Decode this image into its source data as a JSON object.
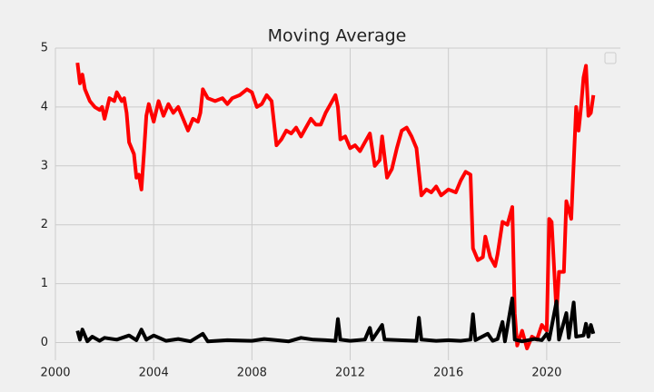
{
  "chart_data": {
    "type": "line",
    "title": "Moving Average",
    "xlim": [
      2000,
      2023
    ],
    "xticks": [
      2000,
      2004,
      2008,
      2012,
      2016,
      2020
    ],
    "ylim": [
      -0.3,
      5
    ],
    "yticks": [
      0,
      1,
      2,
      3,
      4,
      5
    ],
    "grid": true,
    "series": [
      {
        "color": "#ff0000",
        "x": [
          2000.9,
          2001.0,
          2001.1,
          2001.2,
          2001.4,
          2001.6,
          2001.8,
          2001.9,
          2002.0,
          2002.2,
          2002.4,
          2002.5,
          2002.7,
          2002.8,
          2002.9,
          2003.0,
          2003.2,
          2003.3,
          2003.4,
          2003.5,
          2003.6,
          2003.7,
          2003.8,
          2004.0,
          2004.2,
          2004.4,
          2004.6,
          2004.8,
          2005.0,
          2005.2,
          2005.4,
          2005.6,
          2005.8,
          2005.9,
          2006.0,
          2006.2,
          2006.5,
          2006.8,
          2007.0,
          2007.2,
          2007.5,
          2007.8,
          2008.0,
          2008.2,
          2008.4,
          2008.6,
          2008.8,
          2009.0,
          2009.2,
          2009.4,
          2009.6,
          2009.8,
          2010.0,
          2010.2,
          2010.4,
          2010.6,
          2010.8,
          2011.0,
          2011.2,
          2011.4,
          2011.5,
          2011.6,
          2011.8,
          2012.0,
          2012.2,
          2012.4,
          2012.6,
          2012.8,
          2013.0,
          2013.2,
          2013.3,
          2013.5,
          2013.7,
          2013.9,
          2014.1,
          2014.3,
          2014.5,
          2014.7,
          2014.9,
          2015.1,
          2015.3,
          2015.5,
          2015.7,
          2016.0,
          2016.3,
          2016.5,
          2016.7,
          2016.9,
          2017.0,
          2017.2,
          2017.4,
          2017.5,
          2017.7,
          2017.9,
          2018.0,
          2018.2,
          2018.4,
          2018.6,
          2018.7,
          2018.8,
          2019.0,
          2019.2,
          2019.4,
          2019.6,
          2019.8,
          2020.0,
          2020.1,
          2020.2,
          2020.4,
          2020.5,
          2020.7,
          2020.8,
          2021.0,
          2021.2,
          2021.3,
          2021.4,
          2021.5,
          2021.6,
          2021.7,
          2021.8,
          2021.9
        ],
        "values": [
          4.75,
          4.4,
          4.55,
          4.3,
          4.1,
          4.0,
          3.95,
          4.0,
          3.8,
          4.15,
          4.1,
          4.25,
          4.1,
          4.15,
          3.9,
          3.4,
          3.2,
          2.8,
          2.85,
          2.6,
          3.2,
          3.85,
          4.05,
          3.75,
          4.1,
          3.85,
          4.05,
          3.9,
          4.0,
          3.8,
          3.6,
          3.8,
          3.75,
          3.9,
          4.3,
          4.15,
          4.1,
          4.15,
          4.05,
          4.15,
          4.2,
          4.3,
          4.25,
          4.0,
          4.05,
          4.2,
          4.1,
          3.35,
          3.45,
          3.6,
          3.55,
          3.65,
          3.5,
          3.65,
          3.8,
          3.7,
          3.7,
          3.9,
          4.05,
          4.2,
          4.0,
          3.45,
          3.5,
          3.3,
          3.35,
          3.25,
          3.4,
          3.55,
          3.0,
          3.1,
          3.5,
          2.8,
          2.95,
          3.3,
          3.6,
          3.65,
          3.5,
          3.3,
          2.5,
          2.6,
          2.55,
          2.65,
          2.5,
          2.6,
          2.55,
          2.75,
          2.9,
          2.85,
          1.6,
          1.4,
          1.45,
          1.8,
          1.45,
          1.3,
          1.5,
          2.05,
          2.0,
          2.3,
          0.5,
          -0.05,
          0.2,
          -0.1,
          0.1,
          0.05,
          0.3,
          0.2,
          2.1,
          2.05,
          0.5,
          1.2,
          1.2,
          2.4,
          2.1,
          4.0,
          3.6,
          4.0,
          4.5,
          4.7,
          3.85,
          3.9,
          4.2
        ]
      },
      {
        "color": "#000000",
        "x": [
          2000.9,
          2001.0,
          2001.1,
          2001.3,
          2001.5,
          2001.8,
          2002.0,
          2002.5,
          2003.0,
          2003.3,
          2003.5,
          2003.7,
          2004.0,
          2004.5,
          2005.0,
          2005.5,
          2006.0,
          2006.2,
          2007.0,
          2008.0,
          2008.5,
          2009.0,
          2009.5,
          2010.0,
          2010.5,
          2011.0,
          2011.4,
          2011.5,
          2011.6,
          2012.0,
          2012.6,
          2012.8,
          2012.9,
          2013.3,
          2013.4,
          2014.0,
          2014.7,
          2014.8,
          2014.9,
          2015.5,
          2016.0,
          2016.5,
          2016.9,
          2017.0,
          2017.1,
          2017.6,
          2017.8,
          2018.0,
          2018.2,
          2018.3,
          2018.6,
          2018.7,
          2019.0,
          2019.5,
          2019.8,
          2020.0,
          2020.1,
          2020.4,
          2020.5,
          2020.8,
          2020.9,
          2021.1,
          2021.2,
          2021.5,
          2021.6,
          2021.7,
          2021.8,
          2021.9
        ],
        "values": [
          0.2,
          0.05,
          0.22,
          0.02,
          0.1,
          0.03,
          0.08,
          0.05,
          0.12,
          0.04,
          0.22,
          0.05,
          0.12,
          0.03,
          0.06,
          0.02,
          0.15,
          0.02,
          0.04,
          0.03,
          0.06,
          0.04,
          0.02,
          0.08,
          0.05,
          0.04,
          0.03,
          0.4,
          0.05,
          0.03,
          0.05,
          0.25,
          0.05,
          0.3,
          0.05,
          0.04,
          0.03,
          0.42,
          0.05,
          0.03,
          0.04,
          0.03,
          0.05,
          0.48,
          0.04,
          0.15,
          0.03,
          0.06,
          0.35,
          0.02,
          0.75,
          0.05,
          0.02,
          0.06,
          0.04,
          0.15,
          0.05,
          0.7,
          0.05,
          0.5,
          0.08,
          0.68,
          0.1,
          0.12,
          0.32,
          0.1,
          0.3,
          0.15
        ]
      }
    ]
  }
}
